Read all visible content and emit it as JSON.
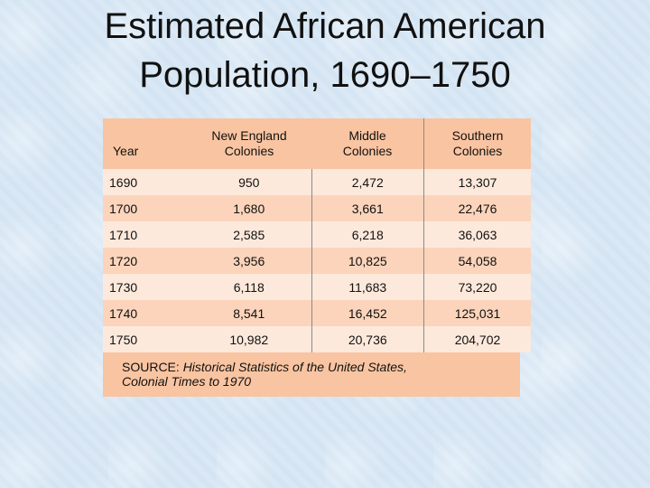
{
  "title": {
    "line1": "Estimated African American",
    "line2": "Population, 1690–1750"
  },
  "table": {
    "headers": {
      "year": "Year",
      "new_england": [
        "New England",
        "Colonies"
      ],
      "middle": [
        "Middle",
        "Colonies"
      ],
      "southern": [
        "Southern",
        "Colonies"
      ]
    },
    "rows": [
      {
        "year": "1690",
        "new_england": "950",
        "middle": "2,472",
        "southern": "13,307"
      },
      {
        "year": "1700",
        "new_england": "1,680",
        "middle": "3,661",
        "southern": "22,476"
      },
      {
        "year": "1710",
        "new_england": "2,585",
        "middle": "6,218",
        "southern": "36,063"
      },
      {
        "year": "1720",
        "new_england": "3,956",
        "middle": "10,825",
        "southern": "54,058"
      },
      {
        "year": "1730",
        "new_england": "6,118",
        "middle": "11,683",
        "southern": "73,220"
      },
      {
        "year": "1740",
        "new_england": "8,541",
        "middle": "16,452",
        "southern": "125,031"
      },
      {
        "year": "1750",
        "new_england": "10,982",
        "middle": "20,736",
        "southern": "204,702"
      }
    ]
  },
  "source": {
    "label": "SOURCE: ",
    "text_line1": "Historical Statistics of the United States,",
    "text_line2": "Colonial Times to 1970"
  },
  "colors": {
    "background": "#d6e6f4",
    "header_fill": "#f9c4a1",
    "row_light": "#fde9dc",
    "row_dark": "#fbd4bb"
  }
}
